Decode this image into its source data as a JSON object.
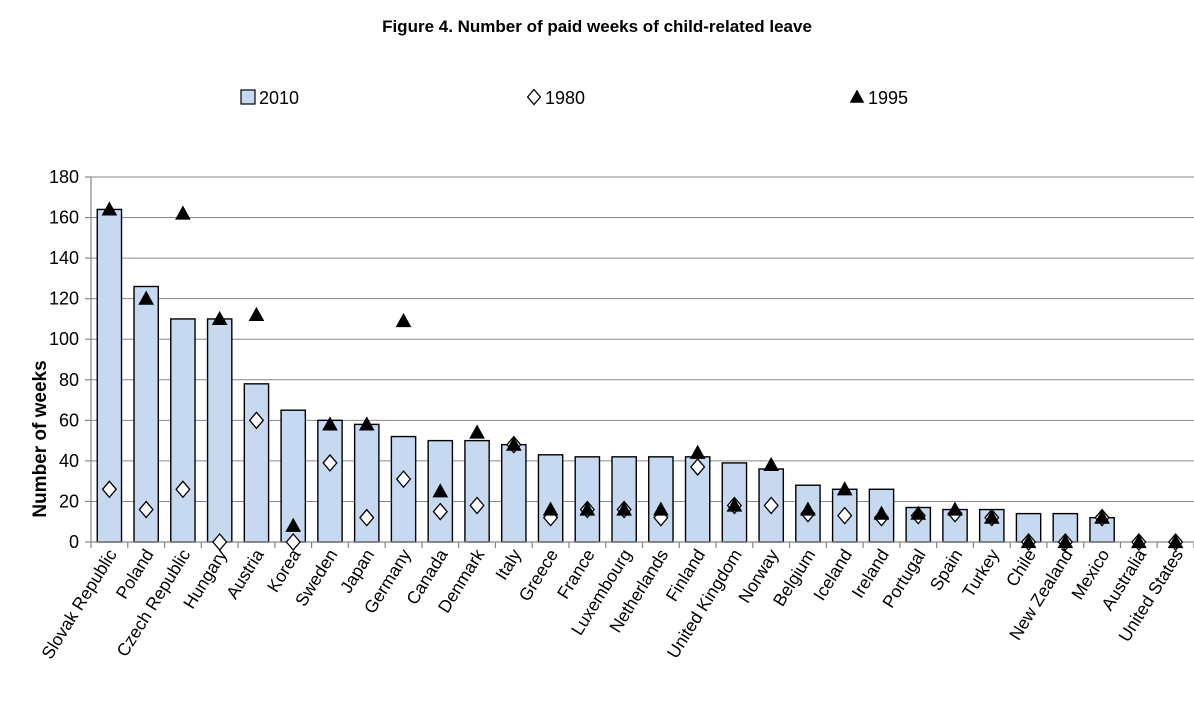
{
  "chart_data": {
    "type": "bar",
    "title": "Figure 4. Number of paid weeks of child-related leave",
    "xlabel": "",
    "ylabel": "Number of weeks",
    "ylim": [
      0,
      180
    ],
    "yticks": [
      0,
      20,
      40,
      60,
      80,
      100,
      120,
      140,
      160,
      180
    ],
    "grid": true,
    "legend_position": "top",
    "categories": [
      "Slovak Republic",
      "Poland",
      "Czech Republic",
      "Hungary",
      "Austria",
      "Korea",
      "Sweden",
      "Japan",
      "Germany",
      "Canada",
      "Denmark",
      "Italy",
      "Greece",
      "France",
      "Luxembourg",
      "Netherlands",
      "Finland",
      "United Kingdom",
      "Norway",
      "Belgium",
      "Iceland",
      "Ireland",
      "Portugal",
      "Spain",
      "Turkey",
      "Chile",
      "New Zealand",
      "Mexico",
      "Australia",
      "United States"
    ],
    "series": [
      {
        "name": "2010",
        "kind": "bar",
        "marker": "square",
        "color": "#c6d9f1",
        "values": [
          164,
          126,
          110,
          110,
          78,
          65,
          60,
          58,
          52,
          50,
          50,
          48,
          43,
          42,
          42,
          42,
          42,
          39,
          36,
          28,
          26,
          26,
          17,
          16,
          16,
          14,
          14,
          12,
          0,
          0
        ]
      },
      {
        "name": "1980",
        "kind": "point",
        "marker": "diamond",
        "color": "#ffffff",
        "values": [
          26,
          16,
          26,
          0,
          60,
          0,
          39,
          12,
          31,
          15,
          18,
          48,
          12,
          16,
          16,
          12,
          37,
          18,
          18,
          14,
          13,
          12,
          13,
          14,
          12,
          0,
          0,
          12,
          0,
          0
        ]
      },
      {
        "name": "1995",
        "kind": "point",
        "marker": "triangle",
        "color": "#000000",
        "values": [
          164,
          120,
          162,
          110,
          112,
          8,
          58,
          58,
          109,
          25,
          54,
          48,
          16,
          16,
          16,
          16,
          44,
          18,
          38,
          16,
          26,
          14,
          14,
          16,
          12,
          0,
          0,
          12,
          0,
          0
        ]
      }
    ]
  }
}
